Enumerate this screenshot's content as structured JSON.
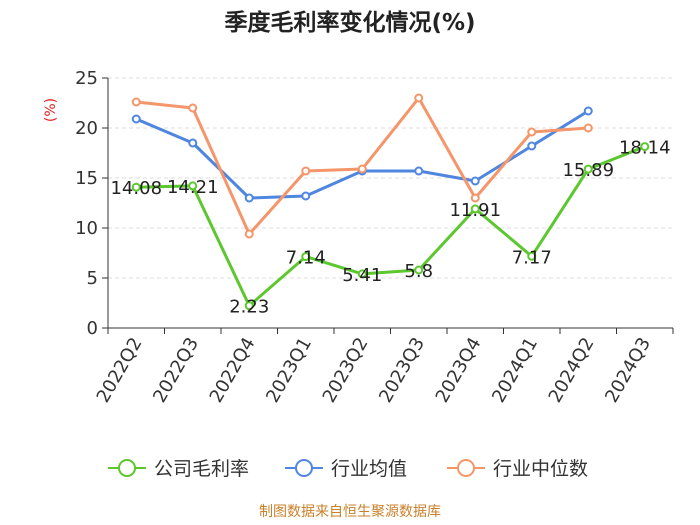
{
  "chart_data": {
    "type": "line",
    "title": "季度毛利率变化情况(%)",
    "ylabel": "(%)",
    "xlabel": "",
    "categories": [
      "2022Q2",
      "2022Q3",
      "2022Q4",
      "2023Q1",
      "2023Q2",
      "2023Q3",
      "2023Q4",
      "2024Q1",
      "2024Q2",
      "2024Q3"
    ],
    "ylim": [
      0,
      25
    ],
    "yticks": [
      0,
      5,
      10,
      15,
      20,
      25
    ],
    "grid": true,
    "legend_position": "bottom",
    "series": [
      {
        "name": "公司毛利率",
        "color": "#5cc72f",
        "values": [
          14.08,
          14.21,
          2.23,
          7.14,
          5.41,
          5.8,
          11.91,
          7.17,
          15.89,
          18.14
        ],
        "labels": [
          "14.08",
          "14.21",
          "2.23",
          "7.14",
          "5.41",
          "5.8",
          "11.91",
          "7.17",
          "15.89",
          "18.14"
        ]
      },
      {
        "name": "行业均值",
        "color": "#4e86e0",
        "values": [
          20.9,
          18.5,
          13.0,
          13.2,
          15.7,
          15.7,
          14.7,
          18.2,
          21.7,
          null
        ]
      },
      {
        "name": "行业中位数",
        "color": "#f5966a",
        "values": [
          22.6,
          22.0,
          9.4,
          15.7,
          15.9,
          23.0,
          13.0,
          19.6,
          20.0,
          null
        ]
      }
    ],
    "source_note": "制图数据来自恒生聚源数据库",
    "colors": {
      "title": "#222222",
      "ylabel": "#e02020",
      "axis": "#333333",
      "grid": "#dddddd",
      "source": "#c8802a"
    }
  }
}
